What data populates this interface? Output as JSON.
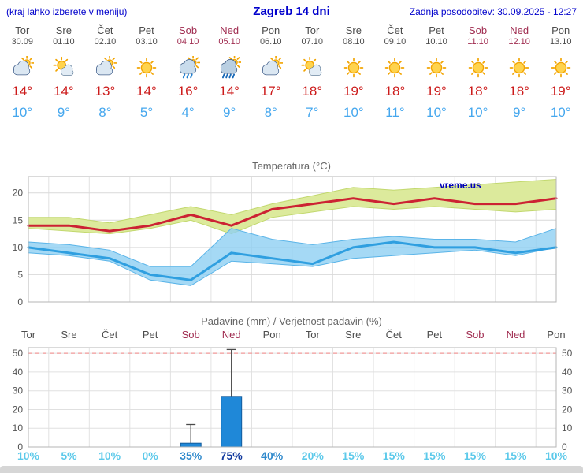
{
  "header": {
    "left_note": "(kraj lahko izberete v meniju)",
    "title": "Zagreb 14 dni",
    "updated": "Zadnja posodobitev: 30.09.2025 - 12:27"
  },
  "colors": {
    "accent": "#0000cc",
    "weekend": "#a02c50",
    "hi": "#cc1a1a",
    "lo": "#45a7ee",
    "prob_low": "#5cc9ea",
    "prob_mid": "#2f89cc",
    "prob_high": "#123a9e",
    "footer": "#d6d6d6"
  },
  "days": [
    {
      "name": "Tor",
      "date": "30.09",
      "icon": "cloud-sun",
      "high": "14°",
      "low": "10°",
      "weekend": false
    },
    {
      "name": "Sre",
      "date": "01.10",
      "icon": "sun-cloud",
      "high": "14°",
      "low": "9°",
      "weekend": false
    },
    {
      "name": "Čet",
      "date": "02.10",
      "icon": "cloud-sun",
      "high": "13°",
      "low": "8°",
      "weekend": false
    },
    {
      "name": "Pet",
      "date": "03.10",
      "icon": "sun",
      "high": "14°",
      "low": "5°",
      "weekend": false
    },
    {
      "name": "Sob",
      "date": "04.10",
      "icon": "rain-sun",
      "high": "16°",
      "low": "4°",
      "weekend": true
    },
    {
      "name": "Ned",
      "date": "05.10",
      "icon": "rain-heavy-sun",
      "high": "14°",
      "low": "9°",
      "weekend": true
    },
    {
      "name": "Pon",
      "date": "06.10",
      "icon": "cloud-sun",
      "high": "17°",
      "low": "8°",
      "weekend": false
    },
    {
      "name": "Tor",
      "date": "07.10",
      "icon": "sun-cloud",
      "high": "18°",
      "low": "7°",
      "weekend": false
    },
    {
      "name": "Sre",
      "date": "08.10",
      "icon": "sun",
      "high": "19°",
      "low": "10°",
      "weekend": false
    },
    {
      "name": "Čet",
      "date": "09.10",
      "icon": "sun",
      "high": "18°",
      "low": "11°",
      "weekend": false
    },
    {
      "name": "Pet",
      "date": "10.10",
      "icon": "sun",
      "high": "19°",
      "low": "10°",
      "weekend": false
    },
    {
      "name": "Sob",
      "date": "11.10",
      "icon": "sun",
      "high": "18°",
      "low": "10°",
      "weekend": true
    },
    {
      "name": "Ned",
      "date": "12.10",
      "icon": "sun",
      "high": "18°",
      "low": "9°",
      "weekend": true
    },
    {
      "name": "Pon",
      "date": "13.10",
      "icon": "sun",
      "high": "19°",
      "low": "10°",
      "weekend": false
    }
  ],
  "chart_data": [
    {
      "type": "line",
      "title": "Temperatura (°C)",
      "watermark": "vreme.us",
      "categories": [
        "Tor",
        "Sre",
        "Čet",
        "Pet",
        "Sob",
        "Ned",
        "Pon",
        "Tor",
        "Sre",
        "Čet",
        "Pet",
        "Sob",
        "Ned",
        "Pon"
      ],
      "ylim": [
        0,
        23
      ],
      "yticks": [
        0,
        5,
        10,
        15,
        20
      ],
      "grid": true,
      "legend": "none",
      "series": [
        {
          "name": "max-temperature",
          "color": "#cc2233",
          "values": [
            14,
            14,
            13,
            14,
            16,
            14,
            17,
            18,
            19,
            18,
            19,
            18,
            18,
            19
          ]
        },
        {
          "name": "min-temperature",
          "color": "#2f9fe0",
          "values": [
            10,
            9,
            8,
            5,
            4,
            9,
            8,
            7,
            10,
            11,
            10,
            10,
            9,
            10
          ]
        }
      ],
      "bands": [
        {
          "name": "max-temperature-range",
          "color": "#dcea9c",
          "edge": "#c2d86e",
          "opacity": 1,
          "upper": [
            15.5,
            15.5,
            14.5,
            16,
            17.5,
            16,
            18,
            19.5,
            21,
            20.5,
            21,
            21.5,
            22,
            22.5
          ],
          "lower": [
            13.5,
            13,
            12.5,
            13.5,
            15,
            12.5,
            15.5,
            16.5,
            17.5,
            17,
            17.5,
            17,
            16.5,
            17
          ]
        },
        {
          "name": "min-temperature-range",
          "color": "#8fd0f2",
          "edge": "#5ab4e8",
          "opacity": 0.8,
          "upper": [
            11,
            10.5,
            9.5,
            6.5,
            6.5,
            13.5,
            11.5,
            10.5,
            11.5,
            12,
            11.5,
            11.5,
            11,
            13.5
          ],
          "lower": [
            9,
            8.5,
            7.5,
            4,
            3,
            7.5,
            7,
            6.5,
            8,
            8.5,
            9,
            9.5,
            8.5,
            10
          ]
        }
      ]
    },
    {
      "type": "bar",
      "title": "Padavine (mm) / Verjetnost padavin (%)",
      "categories": [
        "Tor",
        "Sre",
        "Čet",
        "Pet",
        "Sob",
        "Ned",
        "Pon",
        "Tor",
        "Sre",
        "Čet",
        "Pet",
        "Sob",
        "Ned",
        "Pon"
      ],
      "weekend": [
        false,
        false,
        false,
        false,
        true,
        true,
        false,
        false,
        false,
        false,
        false,
        true,
        true,
        false
      ],
      "values": [
        0,
        0,
        0,
        0,
        2,
        27,
        0,
        0,
        0,
        0,
        0,
        0,
        0,
        0
      ],
      "whiskers": [
        0,
        0,
        0,
        0,
        12,
        52,
        0,
        0,
        0,
        0,
        0,
        0,
        0,
        0
      ],
      "ylim": [
        0,
        53
      ],
      "yticks": [
        0,
        10,
        20,
        30,
        40,
        50
      ],
      "limit_line": 50,
      "bar_color": "#1f88d8",
      "bar_edge": "#135c9c",
      "probabilities": [
        "10%",
        "5%",
        "10%",
        "0%",
        "35%",
        "75%",
        "40%",
        "20%",
        "15%",
        "15%",
        "15%",
        "15%",
        "15%",
        "10%"
      ]
    }
  ]
}
